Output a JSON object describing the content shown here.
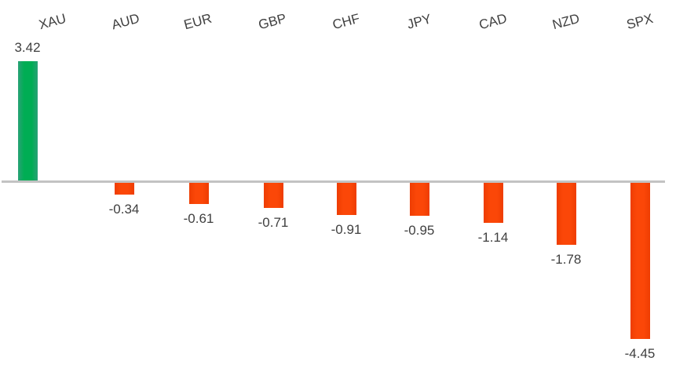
{
  "chart_data": {
    "type": "bar",
    "title": "",
    "xlabel": "",
    "ylabel": "",
    "categories": [
      "XAU",
      "AUD",
      "EUR",
      "GBP",
      "CHF",
      "JPY",
      "CAD",
      "NZD",
      "SPX"
    ],
    "values": [
      3.42,
      -0.34,
      -0.61,
      -0.71,
      -0.91,
      -0.95,
      -1.14,
      -1.78,
      -4.45
    ],
    "value_labels": [
      "3.42",
      "-0.34",
      "-0.61",
      "-0.71",
      "-0.91",
      "-0.95",
      "-1.14",
      "-1.78",
      "-4.45"
    ],
    "ylim": [
      -4.45,
      3.42
    ],
    "grid": false,
    "legend_position": "none",
    "baseline_value": 0,
    "colors": {
      "positive_bar": "#00ad54",
      "negative_bar": "#f94406",
      "baseline": "#c3c3c3",
      "text": "#3f3f3f",
      "background": "#ffffff"
    }
  }
}
